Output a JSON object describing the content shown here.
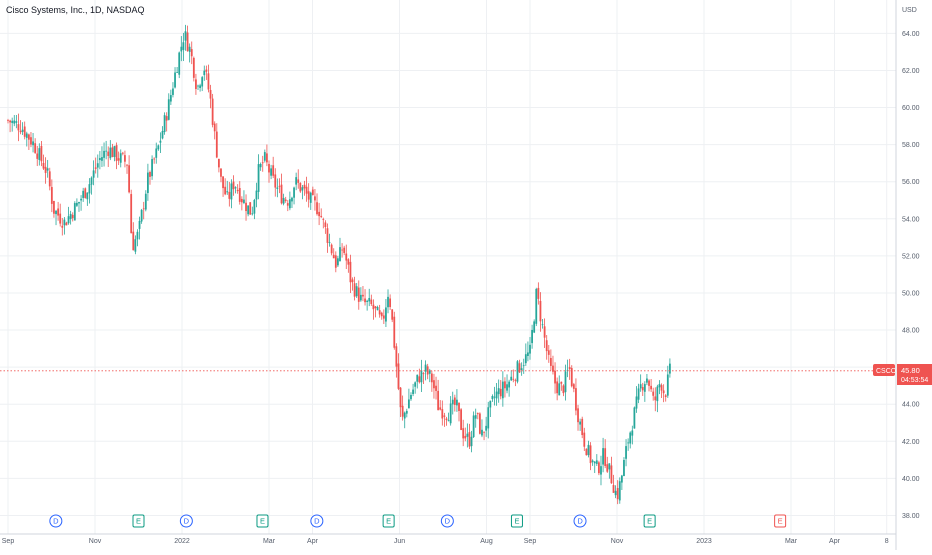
{
  "header": {
    "title": "Cisco Systems, Inc., 1D, NASDAQ"
  },
  "price_scale": {
    "currency": "USD"
  },
  "last_price": {
    "symbol": "CSCO",
    "price": "45.80",
    "countdown": "04:53:54"
  },
  "events": [
    {
      "kind": "D",
      "month_pos": 1.1,
      "future": false
    },
    {
      "kind": "E",
      "month_pos": 3.0,
      "future": false
    },
    {
      "kind": "D",
      "month_pos": 4.1,
      "future": false
    },
    {
      "kind": "E",
      "month_pos": 5.85,
      "future": false
    },
    {
      "kind": "D",
      "month_pos": 7.1,
      "future": false
    },
    {
      "kind": "E",
      "month_pos": 8.75,
      "future": false
    },
    {
      "kind": "D",
      "month_pos": 10.1,
      "future": false
    },
    {
      "kind": "E",
      "month_pos": 11.7,
      "future": false
    },
    {
      "kind": "D",
      "month_pos": 13.15,
      "future": false
    },
    {
      "kind": "E",
      "month_pos": 14.75,
      "future": false
    },
    {
      "kind": "E",
      "month_pos": 17.75,
      "future": true
    }
  ],
  "colors": {
    "up": "#26a69a",
    "down": "#ef5350",
    "last": "#ef5350",
    "grid": "#eef0f3",
    "axis": "#d1d4dc",
    "event_d": "#2962ff",
    "event_e": "#089981",
    "event_future": "#ef5350"
  },
  "chart_data": {
    "type": "candlestick",
    "title": "Cisco Systems, Inc., 1D, NASDAQ",
    "ylim": [
      37,
      65.8
    ],
    "y_ticks": [
      "38.00",
      "40.00",
      "42.00",
      "44.00",
      "46.00",
      "48.00",
      "50.00",
      "52.00",
      "54.00",
      "56.00",
      "58.00",
      "60.00",
      "62.00",
      "64.00"
    ],
    "x_ticks": [
      {
        "label": "Sep",
        "month_pos": 0
      },
      {
        "label": "Nov",
        "month_pos": 2
      },
      {
        "label": "2022",
        "month_pos": 4
      },
      {
        "label": "Mar",
        "month_pos": 6
      },
      {
        "label": "Apr",
        "month_pos": 7
      },
      {
        "label": "Jun",
        "month_pos": 9
      },
      {
        "label": "Aug",
        "month_pos": 11
      },
      {
        "label": "Sep",
        "month_pos": 12
      },
      {
        "label": "Nov",
        "month_pos": 14
      },
      {
        "label": "2023",
        "month_pos": 16
      },
      {
        "label": "Mar",
        "month_pos": 18
      },
      {
        "label": "Apr",
        "month_pos": 19
      },
      {
        "label": "8",
        "month_pos": 20.2
      }
    ],
    "close_path": [
      [
        0.0,
        59.3
      ],
      [
        0.3,
        59.0
      ],
      [
        0.6,
        58.0
      ],
      [
        0.9,
        56.5
      ],
      [
        1.05,
        54.5
      ],
      [
        1.3,
        53.8
      ],
      [
        1.6,
        54.8
      ],
      [
        1.85,
        55.8
      ],
      [
        2.1,
        57.2
      ],
      [
        2.3,
        57.8
      ],
      [
        2.55,
        57.3
      ],
      [
        2.75,
        57.0
      ],
      [
        2.85,
        52.5
      ],
      [
        3.0,
        53.2
      ],
      [
        3.2,
        56.0
      ],
      [
        3.45,
        57.8
      ],
      [
        3.7,
        60.2
      ],
      [
        3.9,
        62.5
      ],
      [
        4.05,
        64.0
      ],
      [
        4.2,
        63.0
      ],
      [
        4.35,
        61.0
      ],
      [
        4.5,
        62.3
      ],
      [
        4.65,
        60.5
      ],
      [
        4.75,
        58.5
      ],
      [
        4.9,
        56.0
      ],
      [
        5.05,
        55.0
      ],
      [
        5.2,
        56.0
      ],
      [
        5.4,
        55.0
      ],
      [
        5.6,
        54.3
      ],
      [
        5.75,
        56.5
      ],
      [
        5.9,
        57.2
      ],
      [
        6.1,
        56.0
      ],
      [
        6.3,
        55.2
      ],
      [
        6.45,
        55.0
      ],
      [
        6.6,
        56.0
      ],
      [
        6.8,
        55.5
      ],
      [
        6.95,
        55.0
      ],
      [
        7.15,
        54.5
      ],
      [
        7.35,
        53.0
      ],
      [
        7.55,
        51.5
      ],
      [
        7.7,
        52.5
      ],
      [
        7.9,
        50.5
      ],
      [
        8.15,
        49.5
      ],
      [
        8.35,
        49.3
      ],
      [
        8.5,
        48.8
      ],
      [
        8.6,
        48.3
      ],
      [
        8.75,
        50.2
      ],
      [
        8.83,
        48.5
      ],
      [
        9.05,
        43.0
      ],
      [
        9.25,
        44.5
      ],
      [
        9.45,
        45.5
      ],
      [
        9.6,
        45.8
      ],
      [
        9.75,
        45.3
      ],
      [
        9.9,
        43.8
      ],
      [
        10.1,
        43.5
      ],
      [
        10.3,
        44.0
      ],
      [
        10.45,
        42.5
      ],
      [
        10.6,
        42.0
      ],
      [
        10.75,
        43.5
      ],
      [
        10.9,
        42.3
      ],
      [
        11.05,
        43.5
      ],
      [
        11.2,
        44.5
      ],
      [
        11.45,
        45.0
      ],
      [
        11.6,
        45.5
      ],
      [
        11.8,
        46.2
      ],
      [
        12.0,
        46.8
      ],
      [
        12.15,
        50.0
      ],
      [
        12.3,
        48.0
      ],
      [
        12.45,
        46.0
      ],
      [
        12.6,
        45.0
      ],
      [
        12.75,
        44.8
      ],
      [
        12.9,
        46.0
      ],
      [
        13.1,
        43.5
      ],
      [
        13.25,
        42.0
      ],
      [
        13.4,
        41.0
      ],
      [
        13.55,
        40.5
      ],
      [
        13.7,
        41.3
      ],
      [
        13.85,
        40.2
      ],
      [
        14.0,
        39.0
      ],
      [
        14.1,
        40.0
      ],
      [
        14.25,
        42.0
      ],
      [
        14.4,
        43.5
      ],
      [
        14.55,
        45.0
      ],
      [
        14.7,
        45.5
      ],
      [
        14.85,
        44.0
      ],
      [
        15.0,
        45.3
      ],
      [
        15.1,
        44.5
      ],
      [
        15.22,
        45.8
      ]
    ]
  }
}
